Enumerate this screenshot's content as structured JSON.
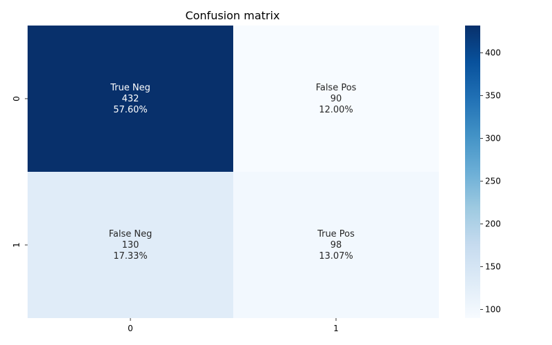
{
  "chart_data": {
    "type": "heatmap",
    "title": "Confusion matrix",
    "x_categories": [
      "0",
      "1"
    ],
    "y_categories": [
      "0",
      "1"
    ],
    "values": [
      [
        432,
        90
      ],
      [
        130,
        98
      ]
    ],
    "cell_labels": [
      [
        {
          "name": "True Neg",
          "count": "432",
          "percent": "57.60%"
        },
        {
          "name": "False Pos",
          "count": "90",
          "percent": "12.00%"
        }
      ],
      [
        {
          "name": "False Neg",
          "count": "130",
          "percent": "17.33%"
        },
        {
          "name": "True Pos",
          "count": "98",
          "percent": "13.07%"
        }
      ]
    ],
    "colormap": "Blues",
    "colorbar": {
      "range": [
        90,
        432
      ],
      "ticks": [
        "100",
        "150",
        "200",
        "250",
        "300",
        "350",
        "400"
      ],
      "location": "right"
    }
  },
  "colors": {
    "light_text": "#ffffff",
    "dark_text": "#262626"
  }
}
